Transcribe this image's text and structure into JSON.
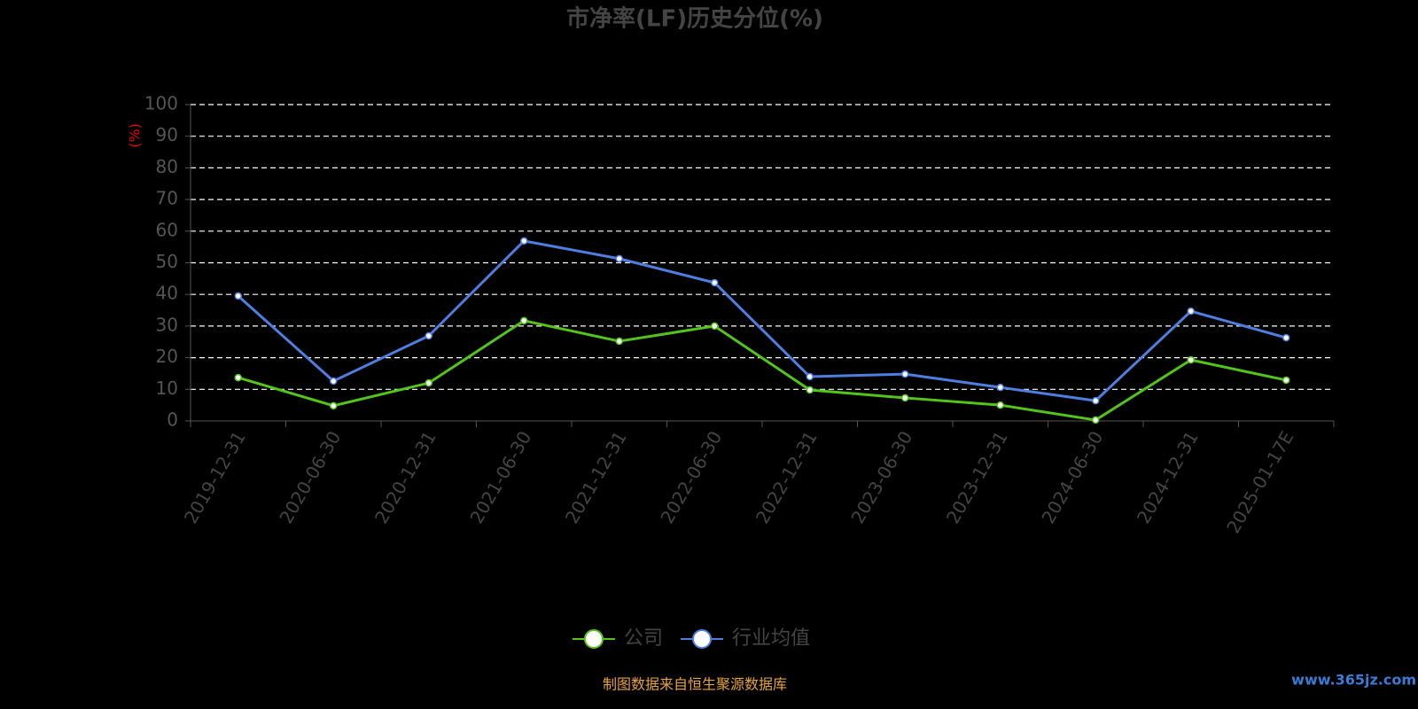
{
  "chart_data": {
    "type": "line",
    "title": "市净率(LF)历史分位(%)",
    "y_label": "(%)",
    "categories": [
      "2019-12-31",
      "2020-06-30",
      "2020-12-31",
      "2021-06-30",
      "2021-12-31",
      "2022-06-30",
      "2022-12-31",
      "2023-06-30",
      "2023-12-31",
      "2024-06-30",
      "2024-12-31",
      "2025-01-17E"
    ],
    "series": [
      {
        "name": "公司",
        "color": "#52c41a",
        "values": [
          13.7,
          4.8,
          12,
          31.7,
          25.2,
          30,
          9.8,
          7.3,
          5,
          0.3,
          19.3,
          12.9
        ]
      },
      {
        "name": "行业均值",
        "color": "#4e7fe0",
        "values": [
          39.5,
          12.6,
          26.9,
          56.9,
          51.3,
          43.7,
          14,
          14.8,
          10.6,
          6.4,
          34.7,
          26.3
        ]
      }
    ],
    "ylim": [
      0,
      100
    ],
    "yticks": [
      0,
      10,
      20,
      30,
      40,
      50,
      60,
      70,
      80,
      90,
      100
    ],
    "grid": true,
    "source": "制图数据来自恒生聚源数据库",
    "watermark": "www.365jz.com"
  }
}
